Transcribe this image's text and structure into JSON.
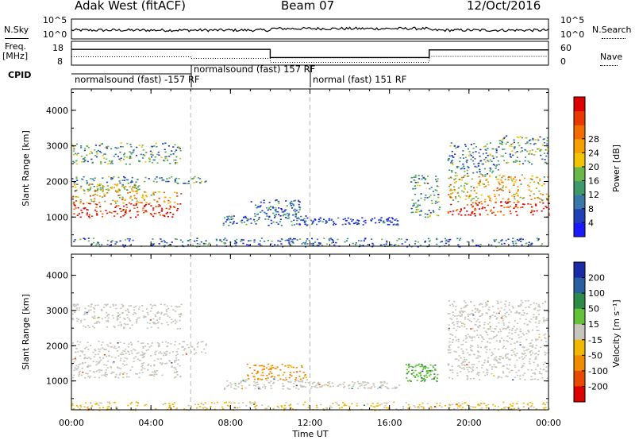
{
  "header": {
    "station": "Adak West (fitACF)",
    "beam": "Beam 07",
    "date": "12/Oct/2016"
  },
  "left_labels": {
    "nsky": "N.Sky",
    "freq_line1": "Freq.",
    "freq_line2": "[MHz]",
    "cpid": "CPID",
    "nsky_top": "10^5",
    "nsky_bottom": "10^0",
    "freq_top": "18",
    "freq_bottom": "8"
  },
  "right_labels": {
    "nsearch": "N.Search",
    "nave": "Nave",
    "nsearch_top": "10^5",
    "nsearch_bottom": "10^0",
    "nave_top": "60",
    "nave_bottom": "0"
  },
  "cpid_segments": [
    {
      "text": "normalsound (fast) -157 RF"
    },
    {
      "text": "normalsound (fast) 157 RF"
    },
    {
      "text": "normal (fast) 151 RF"
    }
  ],
  "xaxis": {
    "label": "Time UT",
    "ticks": [
      "00:00",
      "04:00",
      "08:00",
      "12:00",
      "16:00",
      "20:00",
      "00:00"
    ]
  },
  "power_panel": {
    "ylabel": "Slant Range [km]",
    "yticks": [
      "1000",
      "2000",
      "3000",
      "4000"
    ],
    "colorbar_label": "Power [dB]",
    "colorbar_ticks": [
      "4",
      "8",
      "12",
      "16",
      "20",
      "24",
      "28"
    ],
    "colors": [
      "#1a1aff",
      "#2040b8",
      "#3a78a8",
      "#3e9a6a",
      "#6ab84a",
      "#f2c400",
      "#f5a000",
      "#f36c00",
      "#e83a00",
      "#dd0000"
    ]
  },
  "velocity_panel": {
    "ylabel": "Slant Range [km]",
    "yticks": [
      "1000",
      "2000",
      "3000",
      "4000"
    ],
    "colorbar_label": "Velocity [m s⁻¹]",
    "colorbar_ticks": [
      "200",
      "100",
      "50",
      "15",
      "-15",
      "-50",
      "-100",
      "-200"
    ],
    "colors": [
      "#1a2aa8",
      "#2a60a0",
      "#2e8a48",
      "#63c23a",
      "#c8c6bc",
      "#f2b700",
      "#f28a00",
      "#e84a00",
      "#dd0000"
    ]
  },
  "chart_data": {
    "type": "heatmap",
    "x_range_hours": [
      0,
      24
    ],
    "y_range_km": [
      180,
      4600
    ],
    "parameter_changes_ut_hours": [
      6,
      12
    ],
    "nsky": {
      "log_range": [
        0,
        5
      ],
      "level": 2.2
    },
    "frequency_mhz": [
      {
        "from": 0,
        "to": 10,
        "value": 14.6
      },
      {
        "from": 10,
        "to": 18,
        "value": 11.2
      },
      {
        "from": 18,
        "to": 24,
        "value": 14.4
      }
    ],
    "nave": [
      {
        "from": 0,
        "to": 6,
        "value": 21
      },
      {
        "from": 6,
        "to": 10,
        "value": 17
      },
      {
        "from": 10,
        "to": 18,
        "value": 7
      },
      {
        "from": 18,
        "to": 24,
        "value": 22
      }
    ],
    "power_regions": [
      {
        "t0": 0.0,
        "t1": 5.5,
        "r0": 1000,
        "r1": 1400,
        "level": 0.95
      },
      {
        "t0": 0.0,
        "t1": 5.5,
        "r0": 1400,
        "r1": 1750,
        "level": 0.65
      },
      {
        "t0": 0.0,
        "t1": 3.5,
        "r0": 1750,
        "r1": 1950,
        "level": 0.5
      },
      {
        "t0": 0.0,
        "t1": 6.8,
        "r0": 1950,
        "r1": 2150,
        "level": 0.3
      },
      {
        "t0": 0.0,
        "t1": 5.5,
        "r0": 2500,
        "r1": 3100,
        "level": 0.35
      },
      {
        "t0": 7.6,
        "t1": 11.9,
        "r0": 780,
        "r1": 1050,
        "level": 0.22
      },
      {
        "t0": 9.0,
        "t1": 11.5,
        "r0": 1050,
        "r1": 1500,
        "level": 0.2
      },
      {
        "t0": 12.0,
        "t1": 16.5,
        "r0": 800,
        "r1": 1000,
        "level": 0.12
      },
      {
        "t0": 17.0,
        "t1": 18.5,
        "r0": 1000,
        "r1": 2200,
        "level": 0.35
      },
      {
        "t0": 18.9,
        "t1": 24.0,
        "r0": 1050,
        "r1": 1450,
        "level": 0.92
      },
      {
        "t0": 18.9,
        "t1": 24.0,
        "r0": 1450,
        "r1": 2200,
        "level": 0.6
      },
      {
        "t0": 18.9,
        "t1": 21.5,
        "r0": 2200,
        "r1": 3100,
        "level": 0.3
      },
      {
        "t0": 21.5,
        "t1": 24.0,
        "r0": 2500,
        "r1": 3300,
        "level": 0.35
      },
      {
        "t0": 0.0,
        "t1": 24.0,
        "r0": 180,
        "r1": 420,
        "level": 0.25
      }
    ],
    "velocity_regions": [
      {
        "t0": 0.0,
        "t1": 5.5,
        "r0": 1100,
        "r1": 1750,
        "value": 0
      },
      {
        "t0": 0.0,
        "t1": 6.8,
        "r0": 1750,
        "r1": 2150,
        "value": 0
      },
      {
        "t0": 0.0,
        "t1": 5.5,
        "r0": 2500,
        "r1": 3200,
        "value": 0
      },
      {
        "t0": 7.6,
        "t1": 11.9,
        "r0": 780,
        "r1": 1050,
        "value": 0
      },
      {
        "t0": 8.8,
        "t1": 11.8,
        "r0": 1050,
        "r1": 1500,
        "value": -60
      },
      {
        "t0": 12.0,
        "t1": 16.5,
        "r0": 800,
        "r1": 1000,
        "value": 0
      },
      {
        "t0": 16.8,
        "t1": 18.4,
        "r0": 1000,
        "r1": 1500,
        "value": 40
      },
      {
        "t0": 18.9,
        "t1": 24.0,
        "r0": 1050,
        "r1": 2300,
        "value": 0
      },
      {
        "t0": 18.9,
        "t1": 24.0,
        "r0": 2300,
        "r1": 3300,
        "value": 0
      },
      {
        "t0": 0.0,
        "t1": 24.0,
        "r0": 180,
        "r1": 420,
        "value": -20
      }
    ]
  }
}
